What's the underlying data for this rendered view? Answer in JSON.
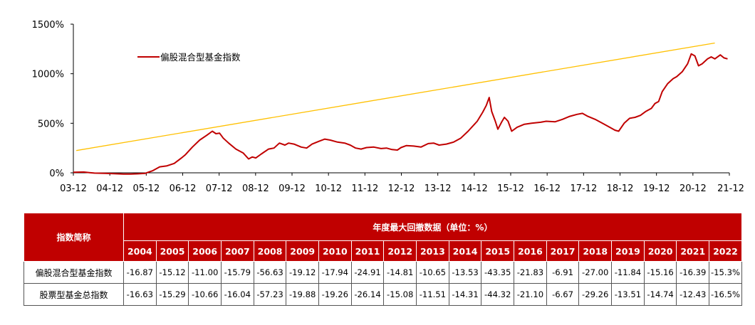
{
  "chart_data": {
    "type": "line",
    "y_ticks": [
      "0%",
      "500%",
      "1000%",
      "1500%"
    ],
    "y_tick_values": [
      0,
      500,
      1000,
      1500
    ],
    "ylim": [
      0,
      1500
    ],
    "x_ticks": [
      "03-12",
      "04-12",
      "05-12",
      "06-12",
      "07-12",
      "08-12",
      "09-12",
      "10-12",
      "11-12",
      "12-12",
      "13-12",
      "14-12",
      "15-12",
      "16-12",
      "17-12",
      "18-12",
      "19-12",
      "20-12",
      "21-12"
    ],
    "xlim": [
      2003.92,
      2022.0
    ],
    "grid": false,
    "legend_position": "top-left",
    "series": [
      {
        "name": "偏股混合型基金指数",
        "color": "#c00000",
        "points": [
          [
            2003.92,
            5
          ],
          [
            2004.2,
            8
          ],
          [
            2004.5,
            -3
          ],
          [
            2004.8,
            -6
          ],
          [
            2005.0,
            -8
          ],
          [
            2005.3,
            -12
          ],
          [
            2005.5,
            -13
          ],
          [
            2005.7,
            -10
          ],
          [
            2005.9,
            -5
          ],
          [
            2006.1,
            20
          ],
          [
            2006.3,
            60
          ],
          [
            2006.5,
            70
          ],
          [
            2006.7,
            95
          ],
          [
            2006.9,
            150
          ],
          [
            2007.0,
            180
          ],
          [
            2007.2,
            260
          ],
          [
            2007.4,
            330
          ],
          [
            2007.6,
            380
          ],
          [
            2007.75,
            420
          ],
          [
            2007.85,
            395
          ],
          [
            2007.95,
            400
          ],
          [
            2008.05,
            350
          ],
          [
            2008.2,
            300
          ],
          [
            2008.4,
            240
          ],
          [
            2008.6,
            200
          ],
          [
            2008.75,
            140
          ],
          [
            2008.85,
            160
          ],
          [
            2008.95,
            150
          ],
          [
            2009.1,
            190
          ],
          [
            2009.3,
            240
          ],
          [
            2009.45,
            250
          ],
          [
            2009.6,
            300
          ],
          [
            2009.75,
            280
          ],
          [
            2009.85,
            300
          ],
          [
            2010.0,
            290
          ],
          [
            2010.2,
            260
          ],
          [
            2010.35,
            250
          ],
          [
            2010.5,
            290
          ],
          [
            2010.7,
            320
          ],
          [
            2010.85,
            340
          ],
          [
            2011.0,
            330
          ],
          [
            2011.2,
            310
          ],
          [
            2011.4,
            300
          ],
          [
            2011.55,
            280
          ],
          [
            2011.7,
            250
          ],
          [
            2011.85,
            240
          ],
          [
            2012.0,
            255
          ],
          [
            2012.2,
            260
          ],
          [
            2012.4,
            245
          ],
          [
            2012.55,
            250
          ],
          [
            2012.7,
            235
          ],
          [
            2012.85,
            230
          ],
          [
            2012.95,
            255
          ],
          [
            2013.1,
            275
          ],
          [
            2013.3,
            270
          ],
          [
            2013.5,
            260
          ],
          [
            2013.7,
            295
          ],
          [
            2013.85,
            300
          ],
          [
            2014.0,
            280
          ],
          [
            2014.2,
            290
          ],
          [
            2014.4,
            310
          ],
          [
            2014.6,
            350
          ],
          [
            2014.8,
            420
          ],
          [
            2014.95,
            480
          ],
          [
            2015.05,
            520
          ],
          [
            2015.2,
            610
          ],
          [
            2015.3,
            680
          ],
          [
            2015.38,
            760
          ],
          [
            2015.45,
            620
          ],
          [
            2015.55,
            520
          ],
          [
            2015.62,
            440
          ],
          [
            2015.72,
            510
          ],
          [
            2015.8,
            560
          ],
          [
            2015.9,
            520
          ],
          [
            2016.0,
            420
          ],
          [
            2016.15,
            460
          ],
          [
            2016.35,
            490
          ],
          [
            2016.55,
            500
          ],
          [
            2016.8,
            510
          ],
          [
            2016.95,
            520
          ],
          [
            2017.2,
            515
          ],
          [
            2017.4,
            540
          ],
          [
            2017.6,
            570
          ],
          [
            2017.8,
            590
          ],
          [
            2017.95,
            600
          ],
          [
            2018.1,
            570
          ],
          [
            2018.3,
            540
          ],
          [
            2018.5,
            500
          ],
          [
            2018.7,
            460
          ],
          [
            2018.85,
            430
          ],
          [
            2018.95,
            420
          ],
          [
            2019.1,
            500
          ],
          [
            2019.25,
            550
          ],
          [
            2019.4,
            560
          ],
          [
            2019.55,
            580
          ],
          [
            2019.7,
            620
          ],
          [
            2019.85,
            650
          ],
          [
            2019.95,
            700
          ],
          [
            2020.05,
            720
          ],
          [
            2020.15,
            820
          ],
          [
            2020.3,
            900
          ],
          [
            2020.45,
            950
          ],
          [
            2020.55,
            970
          ],
          [
            2020.7,
            1020
          ],
          [
            2020.85,
            1100
          ],
          [
            2020.95,
            1200
          ],
          [
            2021.05,
            1180
          ],
          [
            2021.15,
            1080
          ],
          [
            2021.25,
            1100
          ],
          [
            2021.4,
            1150
          ],
          [
            2021.5,
            1170
          ],
          [
            2021.6,
            1150
          ],
          [
            2021.75,
            1190
          ],
          [
            2021.85,
            1160
          ],
          [
            2021.95,
            1150
          ]
        ]
      },
      {
        "name": "",
        "color": "#ffc000",
        "points": [
          [
            2004.0,
            225
          ],
          [
            2021.6,
            1310
          ]
        ]
      }
    ]
  },
  "table": {
    "header_label": "指数简称",
    "group_header": "年度最大回撤数据（单位：%）",
    "years": [
      "2004",
      "2005",
      "2006",
      "2007",
      "2008",
      "2009",
      "2010",
      "2011",
      "2012",
      "2013",
      "2014",
      "2015",
      "2016",
      "2017",
      "2018",
      "2019",
      "2020",
      "2021",
      "2022"
    ],
    "rows": [
      {
        "name": "偏股混合型基金指数",
        "values": [
          "-16.87",
          "-15.12",
          "-11.00",
          "-15.79",
          "-56.63",
          "-19.12",
          "-17.94",
          "-24.91",
          "-14.81",
          "-10.65",
          "-13.53",
          "-43.35",
          "-21.83",
          "-6.91",
          "-27.00",
          "-11.84",
          "-15.16",
          "-16.39",
          "-15.3%"
        ]
      },
      {
        "name": "股票型基金总指数",
        "values": [
          "-16.63",
          "-15.29",
          "-10.66",
          "-16.04",
          "-57.23",
          "-19.88",
          "-19.26",
          "-26.14",
          "-15.08",
          "-11.51",
          "-14.31",
          "-44.32",
          "-21.10",
          "-6.67",
          "-29.26",
          "-13.51",
          "-14.74",
          "-12.43",
          "-16.5%"
        ]
      }
    ]
  }
}
